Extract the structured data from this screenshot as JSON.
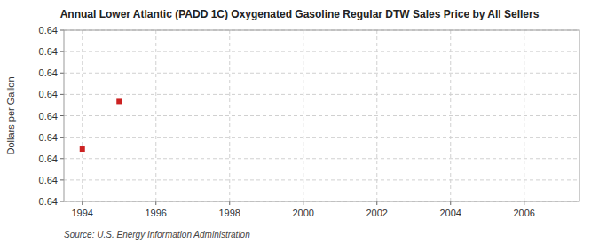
{
  "chart_data": {
    "type": "scatter",
    "title": "Annual Lower Atlantic (PADD 1C) Oxygenated Gasoline Regular DTW Sales Price by All Sellers",
    "y_label": "Dollars per Gallon",
    "annotations": [
      "Source: U.S. Energy Information Administration"
    ],
    "x": [
      1994,
      1995
    ],
    "values": [
      0.63975,
      0.64025
    ],
    "color": "#cc2222",
    "marker": "square",
    "xlim": [
      1993.5,
      2007.5
    ],
    "xticks": [
      1994,
      1996,
      1998,
      2000,
      2002,
      2004,
      2006
    ],
    "ylim": [
      0.6392,
      0.641
    ],
    "yticks": [
      {
        "value": 0.6392,
        "label": "0.64"
      },
      {
        "value": 0.639425,
        "label": "0.64"
      },
      {
        "value": 0.63965,
        "label": "0.64"
      },
      {
        "value": 0.639875,
        "label": "0.64"
      },
      {
        "value": 0.6401,
        "label": "0.64"
      },
      {
        "value": 0.640325,
        "label": "0.64"
      },
      {
        "value": 0.64055,
        "label": "0.64"
      },
      {
        "value": 0.640775,
        "label": "0.64"
      },
      {
        "value": 0.641,
        "label": "0.64"
      }
    ],
    "grid": true
  }
}
